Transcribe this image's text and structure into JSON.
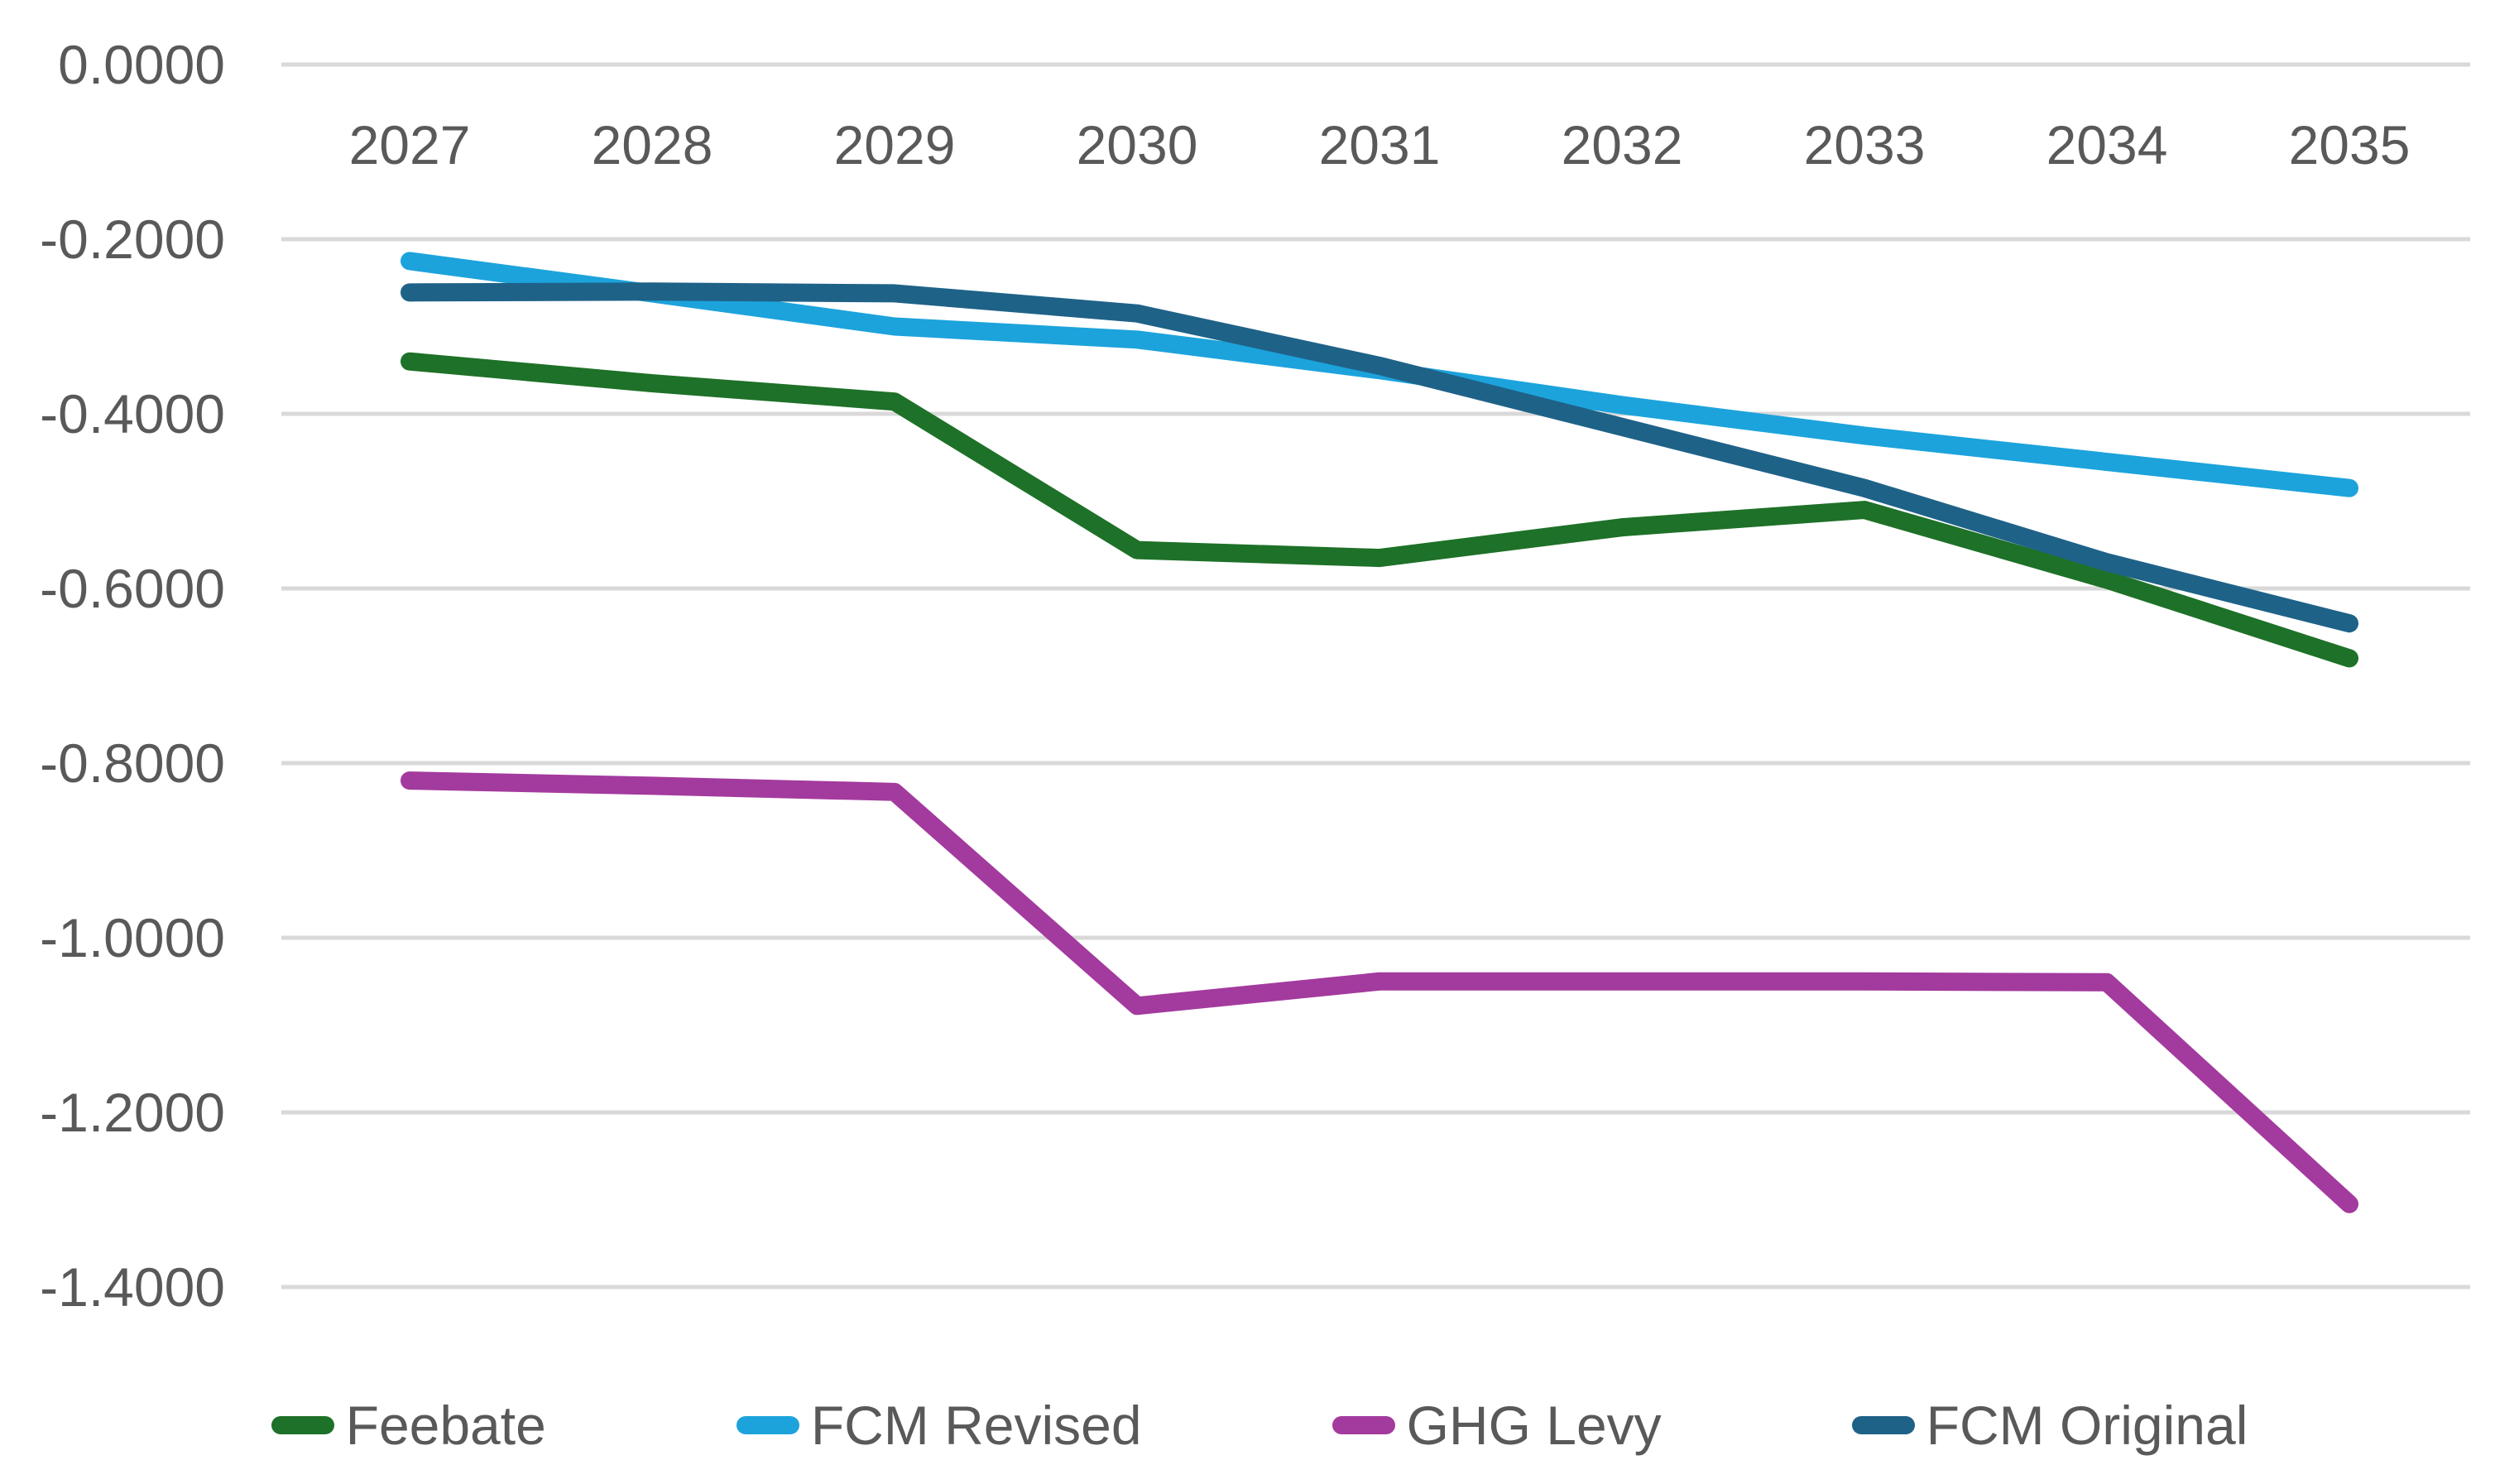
{
  "chart_data": {
    "type": "line",
    "title": "",
    "x_categories": [
      "2027",
      "2028",
      "2029",
      "2030",
      "2031",
      "2032",
      "2033",
      "2034",
      "2035"
    ],
    "y_axis": {
      "tick_labels": [
        "0.0000",
        "-0.2000",
        "-0.4000",
        "-0.6000",
        "-0.8000",
        "-1.0000",
        "-1.2000",
        "-1.4000"
      ],
      "tick_values": [
        0,
        -0.2,
        -0.4,
        -0.6,
        -0.8,
        -1.0,
        -1.2,
        -1.4
      ],
      "range_top": 0,
      "range_bottom": -1.4
    },
    "grid": {
      "horizontal": true,
      "vertical": false,
      "color": "#D9D9D9"
    },
    "axis_text_color": "#595959",
    "legend_position": "bottom",
    "series": [
      {
        "name": "Feebate",
        "color": "#1E7128",
        "values": [
          -0.34,
          -0.365,
          -0.386,
          -0.556,
          -0.565,
          -0.53,
          -0.51,
          -0.59,
          -0.68
        ]
      },
      {
        "name": "FCM Revised",
        "color": "#1CA3DC",
        "values": [
          -0.225,
          -0.262,
          -0.3,
          -0.315,
          -0.35,
          -0.39,
          -0.425,
          -0.455,
          -0.485
        ]
      },
      {
        "name": "GHG Levy",
        "color": "#A33A9E",
        "values": [
          -0.82,
          -0.826,
          -0.833,
          -1.078,
          -1.05,
          -1.05,
          -1.05,
          -1.051,
          -1.305
        ]
      },
      {
        "name": "FCM Original",
        "color": "#1F6288",
        "values": [
          -0.261,
          -0.26,
          -0.262,
          -0.285,
          -0.345,
          -0.415,
          -0.485,
          -0.57,
          -0.64
        ]
      }
    ]
  }
}
